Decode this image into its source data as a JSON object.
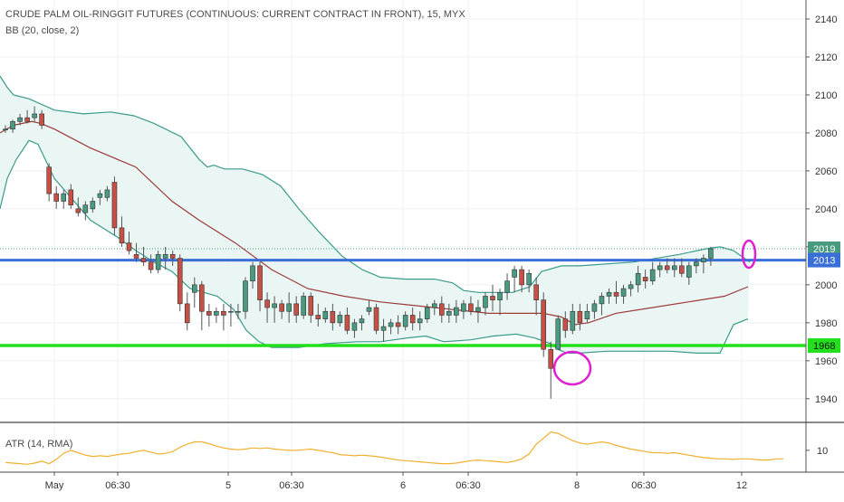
{
  "header": {
    "title": "CRUDE PALM OIL-RINGGIT FUTURES (CONTINUOUS: CURRENT CONTRACT IN FRONT), 15, MYX",
    "indicator": "BB (20, close, 2)",
    "atr_label": "ATR (14, RMA)"
  },
  "colors": {
    "candle_up": "#4a9a80",
    "candle_down": "#c65046",
    "bb_band": "#3a9a8c",
    "bb_fill": "#e6f4f2",
    "bb_basis": "#9c3a3a",
    "resistance": "#3a6fd8",
    "support": "#22e01c",
    "last_price": "#4a9a80",
    "annotation": "#e020d0",
    "atr": "#f0b030"
  },
  "chart_data": [
    {
      "type": "candlestick",
      "title": "CRUDE PALM OIL-RINGGIT FUTURES (CONTINUOUS: CURRENT CONTRACT IN FRONT), 15, MYX",
      "ylim": [
        1928,
        2150
      ],
      "yticks": [
        1940,
        1960,
        1980,
        2000,
        2020,
        2040,
        2060,
        2080,
        2100,
        2120,
        2140
      ],
      "xlabels": [
        "May",
        "06:30",
        "5",
        "06:30",
        "6",
        "06:30",
        "8",
        "06:30",
        "12"
      ],
      "bb_note": "BB (20, close, 2)",
      "ohlc": [
        [
          2082,
          2084,
          2080,
          2082
        ],
        [
          2082,
          2087,
          2080,
          2086
        ],
        [
          2086,
          2090,
          2084,
          2088
        ],
        [
          2088,
          2092,
          2085,
          2086
        ],
        [
          2088,
          2094,
          2086,
          2090
        ],
        [
          2090,
          2092,
          2082,
          2084
        ],
        [
          2062,
          2064,
          2044,
          2048
        ],
        [
          2048,
          2052,
          2040,
          2044
        ],
        [
          2044,
          2050,
          2040,
          2048
        ],
        [
          2050,
          2053,
          2040,
          2042
        ],
        [
          2040,
          2046,
          2036,
          2038
        ],
        [
          2038,
          2044,
          2034,
          2042
        ],
        [
          2040,
          2046,
          2038,
          2044
        ],
        [
          2046,
          2050,
          2042,
          2048
        ],
        [
          2046,
          2052,
          2044,
          2050
        ],
        [
          2054,
          2057,
          2026,
          2030
        ],
        [
          2030,
          2036,
          2020,
          2022
        ],
        [
          2022,
          2028,
          2016,
          2018
        ],
        [
          2016,
          2022,
          2012,
          2014
        ],
        [
          2014,
          2020,
          2010,
          2012
        ],
        [
          2012,
          2016,
          2006,
          2008
        ],
        [
          2008,
          2018,
          2006,
          2016
        ],
        [
          2014,
          2020,
          2008,
          2016
        ],
        [
          2016,
          2018,
          2010,
          2014
        ],
        [
          2014,
          2016,
          1986,
          1990
        ],
        [
          1990,
          1996,
          1976,
          1980
        ],
        [
          1996,
          2004,
          1988,
          2000
        ],
        [
          2000,
          2002,
          1976,
          1986
        ],
        [
          1986,
          1990,
          1978,
          1984
        ],
        [
          1984,
          1988,
          1980,
          1986
        ],
        [
          1986,
          1990,
          1976,
          1984
        ],
        [
          1986,
          1990,
          1978,
          1986
        ],
        [
          1986,
          1990,
          1982,
          1986
        ],
        [
          1986,
          2004,
          1982,
          2002
        ],
        [
          2002,
          2012,
          1998,
          2010
        ],
        [
          2010,
          2012,
          1986,
          1992
        ],
        [
          1992,
          1996,
          1980,
          1988
        ],
        [
          1988,
          1994,
          1980,
          1990
        ],
        [
          1990,
          1992,
          1982,
          1986
        ],
        [
          1986,
          1996,
          1980,
          1990
        ],
        [
          1990,
          1994,
          1980,
          1984
        ],
        [
          1984,
          1996,
          1982,
          1994
        ],
        [
          1994,
          1996,
          1980,
          1984
        ],
        [
          1984,
          1990,
          1978,
          1982
        ],
        [
          1982,
          1988,
          1980,
          1986
        ],
        [
          1986,
          1990,
          1976,
          1980
        ],
        [
          1980,
          1986,
          1978,
          1984
        ],
        [
          1984,
          1988,
          1974,
          1976
        ],
        [
          1976,
          1982,
          1972,
          1980
        ],
        [
          1980,
          1984,
          1976,
          1982
        ],
        [
          1986,
          1992,
          1984,
          1988
        ],
        [
          1988,
          1990,
          1974,
          1976
        ],
        [
          1976,
          1982,
          1970,
          1978
        ],
        [
          1978,
          1982,
          1974,
          1980
        ],
        [
          1980,
          1984,
          1974,
          1978
        ],
        [
          1978,
          1986,
          1976,
          1984
        ],
        [
          1984,
          1988,
          1976,
          1980
        ],
        [
          1980,
          1986,
          1976,
          1982
        ],
        [
          1982,
          1990,
          1980,
          1988
        ],
        [
          1988,
          1992,
          1984,
          1990
        ],
        [
          1990,
          1994,
          1980,
          1984
        ],
        [
          1984,
          1990,
          1980,
          1986
        ],
        [
          1984,
          1992,
          1980,
          1988
        ],
        [
          1986,
          1992,
          1982,
          1990
        ],
        [
          1990,
          1994,
          1984,
          1986
        ],
        [
          1986,
          1992,
          1980,
          1988
        ],
        [
          1988,
          1996,
          1984,
          1994
        ],
        [
          1994,
          2000,
          1986,
          1992
        ],
        [
          1992,
          1998,
          1984,
          1996
        ],
        [
          1996,
          2006,
          1992,
          2002
        ],
        [
          2004,
          2010,
          1996,
          2008
        ],
        [
          2008,
          2010,
          1996,
          2000
        ],
        [
          2000,
          2008,
          1996,
          2006
        ],
        [
          2000,
          2004,
          1984,
          1992
        ],
        [
          1992,
          1996,
          1962,
          1966
        ],
        [
          1966,
          1970,
          1940,
          1956
        ],
        [
          1966,
          1984,
          1966,
          1982
        ],
        [
          1982,
          1986,
          1972,
          1976
        ],
        [
          1976,
          1990,
          1974,
          1986
        ],
        [
          1986,
          1990,
          1976,
          1980
        ],
        [
          1982,
          1990,
          1980,
          1986
        ],
        [
          1986,
          1992,
          1982,
          1990
        ],
        [
          1990,
          1996,
          1984,
          1994
        ],
        [
          1994,
          1998,
          1990,
          1996
        ],
        [
          1996,
          2002,
          1990,
          1994
        ],
        [
          1994,
          2000,
          1990,
          1998
        ],
        [
          1998,
          2002,
          1994,
          2000
        ],
        [
          2000,
          2010,
          1996,
          2006
        ],
        [
          2004,
          2008,
          1998,
          2002
        ],
        [
          2002,
          2012,
          2000,
          2008
        ],
        [
          2008,
          2012,
          2004,
          2010
        ],
        [
          2010,
          2014,
          2006,
          2008
        ],
        [
          2008,
          2014,
          2004,
          2010
        ],
        [
          2010,
          2014,
          2004,
          2006
        ],
        [
          2004,
          2012,
          2000,
          2010
        ],
        [
          2010,
          2014,
          2006,
          2012
        ],
        [
          2012,
          2016,
          2006,
          2014
        ],
        [
          2014,
          2020,
          2010,
          2019
        ]
      ],
      "bb_upper": [
        [
          0,
          2110
        ],
        [
          8,
          2104
        ],
        [
          15,
          2100
        ],
        [
          32,
          2098
        ],
        [
          60,
          2092
        ],
        [
          92,
          2090
        ],
        [
          122,
          2091
        ],
        [
          148,
          2089
        ],
        [
          170,
          2085
        ],
        [
          200,
          2078
        ],
        [
          220,
          2066
        ],
        [
          229,
          2062
        ],
        [
          236,
          2063
        ],
        [
          248,
          2061
        ],
        [
          268,
          2061
        ],
        [
          290,
          2058
        ],
        [
          310,
          2052
        ],
        [
          330,
          2040
        ],
        [
          352,
          2028
        ],
        [
          378,
          2015
        ],
        [
          400,
          2008
        ],
        [
          420,
          2004
        ],
        [
          448,
          2003
        ],
        [
          480,
          2003
        ],
        [
          500,
          2001
        ],
        [
          512,
          1997
        ],
        [
          528,
          1996
        ],
        [
          548,
          1996
        ],
        [
          566,
          1996
        ],
        [
          585,
          1999
        ],
        [
          598,
          2007
        ],
        [
          620,
          2010
        ],
        [
          640,
          2010
        ],
        [
          700,
          2012
        ],
        [
          750,
          2016
        ],
        [
          780,
          2019
        ],
        [
          795,
          2020
        ],
        [
          810,
          2018
        ],
        [
          822,
          2014
        ],
        [
          828,
          2012
        ]
      ],
      "bb_lower": [
        [
          0,
          2040
        ],
        [
          8,
          2056
        ],
        [
          18,
          2066
        ],
        [
          32,
          2076
        ],
        [
          42,
          2074
        ],
        [
          60,
          2056
        ],
        [
          100,
          2034
        ],
        [
          130,
          2025
        ],
        [
          150,
          2018
        ],
        [
          170,
          2012
        ],
        [
          190,
          2007
        ],
        [
          210,
          1998
        ],
        [
          240,
          1994
        ],
        [
          258,
          1987
        ],
        [
          272,
          1976
        ],
        [
          286,
          1970
        ],
        [
          300,
          1967
        ],
        [
          330,
          1967
        ],
        [
          360,
          1969
        ],
        [
          395,
          1970
        ],
        [
          420,
          1970
        ],
        [
          450,
          1972
        ],
        [
          470,
          1973
        ],
        [
          490,
          1970
        ],
        [
          520,
          1971
        ],
        [
          545,
          1973
        ],
        [
          570,
          1974
        ],
        [
          590,
          1972
        ],
        [
          608,
          1969
        ],
        [
          616,
          1966
        ],
        [
          626,
          1964
        ],
        [
          640,
          1964
        ],
        [
          670,
          1965
        ],
        [
          700,
          1965
        ],
        [
          740,
          1965
        ],
        [
          770,
          1964
        ],
        [
          795,
          1964
        ],
        [
          810,
          1979
        ],
        [
          826,
          1982
        ]
      ],
      "bb_basis": [
        [
          0,
          2080
        ],
        [
          15,
          2084
        ],
        [
          35,
          2086
        ],
        [
          45,
          2085
        ],
        [
          60,
          2082
        ],
        [
          100,
          2072
        ],
        [
          150,
          2062
        ],
        [
          190,
          2044
        ],
        [
          220,
          2034
        ],
        [
          260,
          2022
        ],
        [
          300,
          2008
        ],
        [
          340,
          1998
        ],
        [
          380,
          1994
        ],
        [
          420,
          1991
        ],
        [
          460,
          1989
        ],
        [
          500,
          1987
        ],
        [
          540,
          1985
        ],
        [
          570,
          1985
        ],
        [
          600,
          1985
        ],
        [
          620,
          1983
        ],
        [
          635,
          1979
        ],
        [
          650,
          1980
        ],
        [
          680,
          1985
        ],
        [
          720,
          1988
        ],
        [
          760,
          1991
        ],
        [
          800,
          1994
        ],
        [
          826,
          1999
        ]
      ],
      "levels": [
        {
          "name": "resistance",
          "value": 2013,
          "label": "2013"
        },
        {
          "name": "support",
          "value": 1968,
          "label": "1968"
        },
        {
          "name": "last-price",
          "value": 2019,
          "label": "2019"
        }
      ]
    },
    {
      "type": "line",
      "title": "ATR (14, RMA)",
      "ylim": [
        7,
        14
      ],
      "yticks": [
        10
      ],
      "values": [
        8,
        7.9,
        7.8,
        7.7,
        7.9,
        8.2,
        7.8,
        8.5,
        9.5,
        10,
        9.6,
        9.2,
        9,
        9.1,
        9,
        9.2,
        9.4,
        9.5,
        9.8,
        10,
        9.7,
        9.4,
        9.5,
        9.8,
        10.5,
        11,
        11.4,
        11.4,
        11.1,
        10.7,
        10.4,
        10.2,
        10.1,
        10.2,
        10.4,
        10.3,
        10.4,
        10.2,
        10.1,
        10,
        10,
        10.1,
        10.2,
        10,
        9.8,
        9.6,
        9.3,
        9.2,
        9.1,
        9.2,
        9.1,
        9,
        8.8,
        8.6,
        8.4,
        8.3,
        8.2,
        8.1,
        8,
        7.9,
        7.8,
        7.8,
        7.9,
        8.1,
        8.3,
        8.4,
        8.3,
        8.2,
        8.1,
        8,
        8.2,
        8.6,
        9.4,
        11,
        12,
        13,
        12.8,
        12.2,
        11.6,
        11.2,
        11,
        11.2,
        11.4,
        11.2,
        10.8,
        10.5,
        10.2,
        10,
        9.8,
        9.6,
        9.6,
        9.5,
        9.6,
        9.4,
        9.2,
        9,
        8.8,
        8.7,
        8.6,
        8.6,
        8.5,
        8.6,
        8.6,
        8.5,
        8.4,
        8.4,
        8.6,
        8.6
      ]
    }
  ]
}
